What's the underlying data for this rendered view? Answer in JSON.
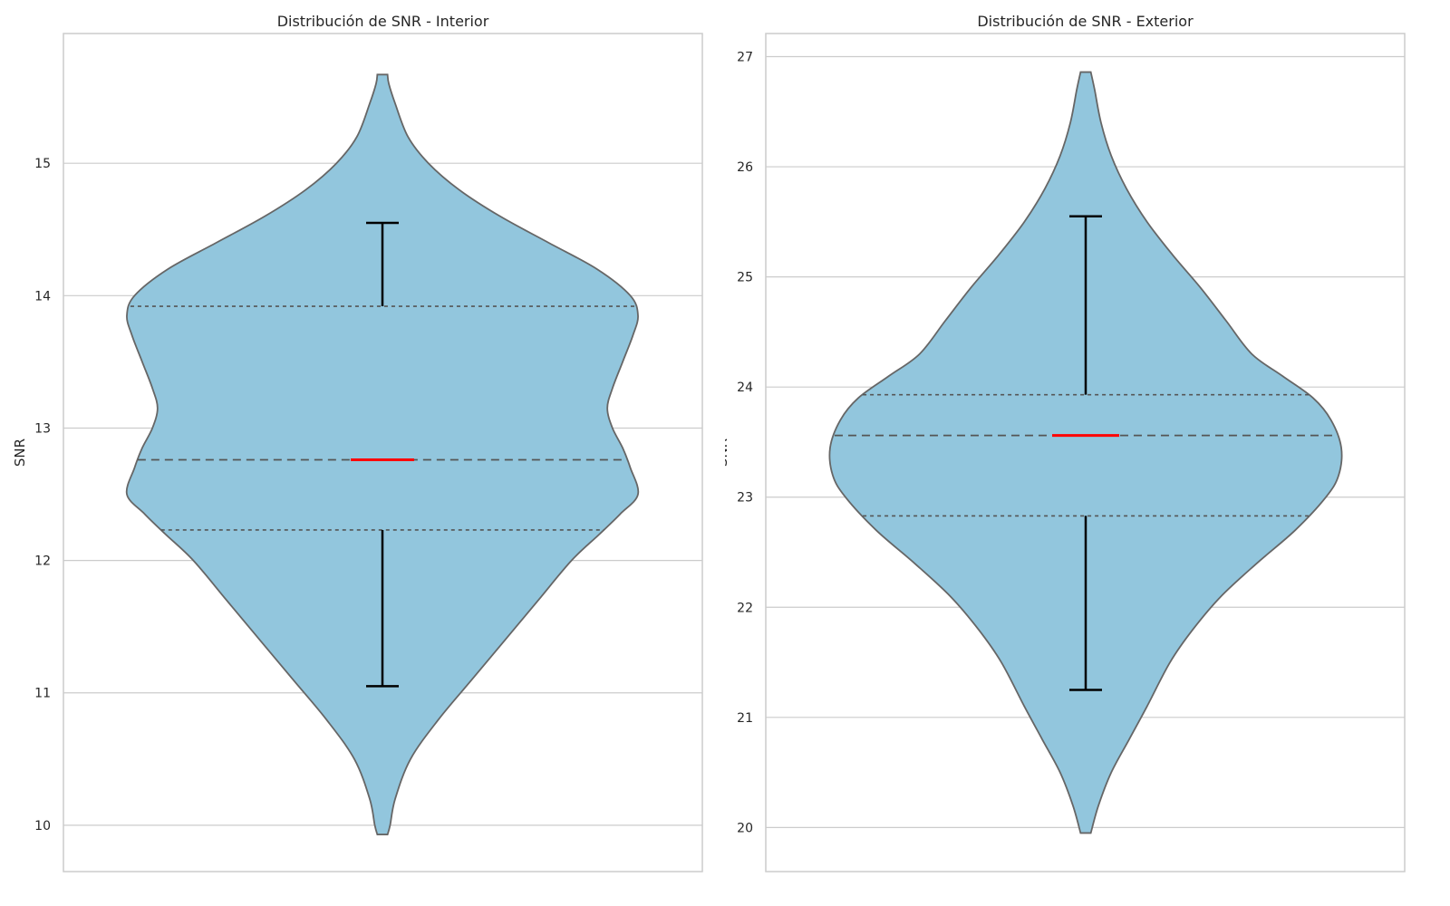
{
  "colors": {
    "violin_fill": "#92c6dd",
    "violin_edge": "#666666",
    "grid": "#cccccc",
    "frame": "#cccccc",
    "whisker": "#000000",
    "median": "#ff0000",
    "quartile": "#555555"
  },
  "chart_data": [
    {
      "type": "violin",
      "title": "Distribución de SNR - Interior",
      "xlabel": "",
      "ylabel": "SNR",
      "ylim": [
        9.65,
        15.98
      ],
      "yticks": [
        10,
        11,
        12,
        13,
        14,
        15
      ],
      "grid": true,
      "median": 12.76,
      "q1": 12.23,
      "q3": 13.92,
      "whisker_low": 11.05,
      "whisker_high": 14.55,
      "density_profile": [
        [
          9.93,
          0.02
        ],
        [
          10.0,
          0.03
        ],
        [
          10.2,
          0.05
        ],
        [
          10.5,
          0.11
        ],
        [
          10.8,
          0.22
        ],
        [
          11.1,
          0.35
        ],
        [
          11.4,
          0.48
        ],
        [
          11.7,
          0.61
        ],
        [
          12.0,
          0.74
        ],
        [
          12.2,
          0.85
        ],
        [
          12.35,
          0.93
        ],
        [
          12.5,
          1.0
        ],
        [
          12.7,
          0.97
        ],
        [
          12.85,
          0.94
        ],
        [
          13.0,
          0.9
        ],
        [
          13.15,
          0.88
        ],
        [
          13.3,
          0.9
        ],
        [
          13.5,
          0.94
        ],
        [
          13.7,
          0.98
        ],
        [
          13.85,
          1.0
        ],
        [
          14.0,
          0.97
        ],
        [
          14.2,
          0.84
        ],
        [
          14.4,
          0.65
        ],
        [
          14.6,
          0.46
        ],
        [
          14.8,
          0.3
        ],
        [
          15.0,
          0.18
        ],
        [
          15.2,
          0.1
        ],
        [
          15.45,
          0.05
        ],
        [
          15.6,
          0.025
        ],
        [
          15.67,
          0.02
        ]
      ]
    },
    {
      "type": "violin",
      "title": "Distribución de SNR - Exterior",
      "xlabel": "",
      "ylabel": "SNR",
      "ylim": [
        19.6,
        27.21
      ],
      "yticks": [
        20,
        21,
        22,
        23,
        24,
        25,
        26,
        27
      ],
      "grid": true,
      "median": 23.56,
      "q1": 22.83,
      "q3": 23.93,
      "whisker_low": 21.25,
      "whisker_high": 25.55,
      "density_profile": [
        [
          19.95,
          0.02
        ],
        [
          20.2,
          0.05
        ],
        [
          20.5,
          0.1
        ],
        [
          20.8,
          0.17
        ],
        [
          21.1,
          0.24
        ],
        [
          21.5,
          0.33
        ],
        [
          21.8,
          0.42
        ],
        [
          22.1,
          0.53
        ],
        [
          22.4,
          0.67
        ],
        [
          22.7,
          0.82
        ],
        [
          23.0,
          0.94
        ],
        [
          23.2,
          0.99
        ],
        [
          23.45,
          1.0
        ],
        [
          23.7,
          0.96
        ],
        [
          23.9,
          0.89
        ],
        [
          24.1,
          0.77
        ],
        [
          24.3,
          0.65
        ],
        [
          24.6,
          0.55
        ],
        [
          24.9,
          0.45
        ],
        [
          25.2,
          0.34
        ],
        [
          25.5,
          0.24
        ],
        [
          25.8,
          0.16
        ],
        [
          26.1,
          0.1
        ],
        [
          26.4,
          0.06
        ],
        [
          26.7,
          0.035
        ],
        [
          26.86,
          0.02
        ]
      ]
    }
  ]
}
